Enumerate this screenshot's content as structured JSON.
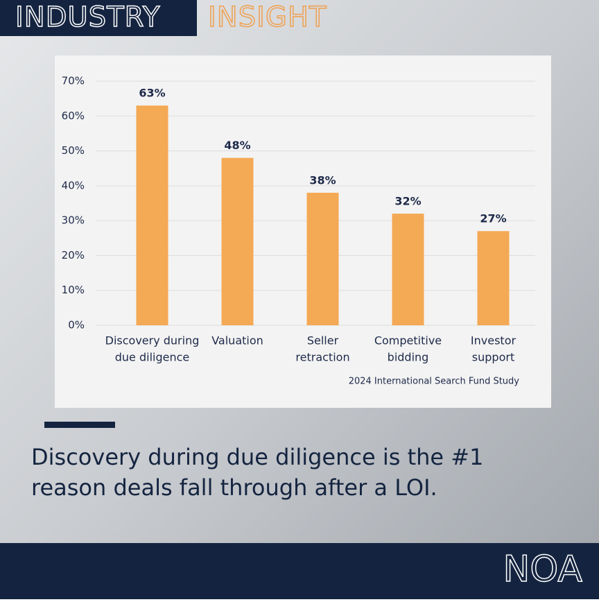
{
  "header": {
    "title": "INDUSTRY",
    "subtitle": "INSIGHT"
  },
  "chart_data": {
    "type": "bar",
    "categories": [
      [
        "Discovery during",
        "due diligence"
      ],
      [
        "Valuation"
      ],
      [
        "Seller",
        "retraction"
      ],
      [
        "Competitive",
        "bidding"
      ],
      [
        "Investor",
        "support"
      ]
    ],
    "values": [
      63,
      48,
      38,
      32,
      27
    ],
    "value_labels": [
      "63%",
      "48%",
      "38%",
      "32%",
      "27%"
    ],
    "color": "#f4a955",
    "ylim": [
      0,
      70
    ],
    "yticks": [
      {
        "value": 0,
        "label": "0%"
      },
      {
        "value": 10,
        "label": "10%"
      },
      {
        "value": 20,
        "label": "20%"
      },
      {
        "value": 30,
        "label": "30%"
      },
      {
        "value": 40,
        "label": "40%"
      },
      {
        "value": 50,
        "label": "50%"
      },
      {
        "value": 60,
        "label": "60%"
      },
      {
        "value": 70,
        "label": "70%"
      }
    ],
    "grid": true,
    "source": "2024 International Search Fund Study"
  },
  "caption": [
    "Discovery during due diligence is the #1",
    "reason deals fall through after a LOI."
  ],
  "brand": "NOA"
}
